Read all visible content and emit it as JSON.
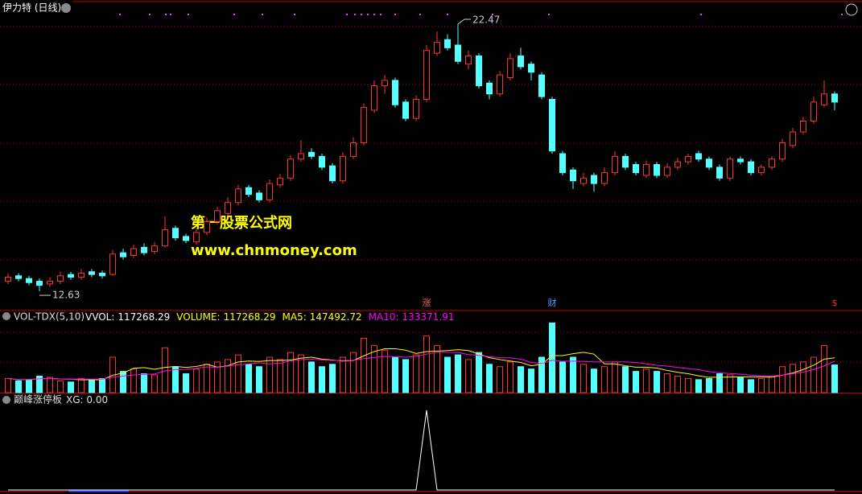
{
  "chart_data": [
    {
      "type": "candlestick",
      "title": "伊力特 (日线)",
      "open": [
        13.0,
        13.2,
        13.1,
        13.0,
        12.9,
        13.0,
        13.25,
        13.15,
        13.35,
        13.3,
        13.25,
        14.05,
        13.95,
        14.25,
        14.1,
        14.3,
        14.95,
        14.65,
        14.45,
        14.8,
        15.2,
        15.5,
        15.9,
        16.45,
        16.25,
        16.0,
        16.55,
        16.8,
        17.5,
        17.75,
        17.6,
        17.25,
        16.7,
        17.6,
        18.1,
        19.3,
        20.2,
        20.4,
        19.6,
        19.0,
        19.7,
        21.4,
        21.9,
        21.7,
        21.0,
        21.3,
        20.3,
        19.9,
        20.5,
        21.3,
        21.0,
        20.6,
        19.7,
        17.7,
        17.1,
        16.6,
        16.9,
        16.6,
        17.0,
        17.6,
        17.3,
        16.9,
        17.3,
        16.9,
        17.2,
        17.4,
        17.7,
        17.5,
        17.2,
        16.8,
        17.5,
        17.4,
        17.0,
        17.2,
        17.5,
        18.0,
        18.5,
        18.9,
        19.5,
        19.9
      ],
      "high": [
        13.3,
        13.3,
        13.2,
        13.1,
        13.15,
        13.35,
        13.35,
        13.45,
        13.45,
        13.4,
        14.15,
        14.2,
        14.35,
        14.4,
        14.45,
        15.4,
        15.05,
        14.75,
        14.95,
        15.35,
        15.75,
        16.1,
        16.55,
        16.55,
        16.35,
        16.75,
        16.95,
        17.65,
        18.2,
        17.9,
        17.7,
        17.35,
        17.75,
        18.3,
        19.55,
        20.4,
        20.6,
        20.5,
        19.7,
        19.85,
        21.7,
        22.2,
        22.1,
        22.47,
        21.5,
        21.4,
        20.4,
        20.75,
        21.4,
        21.6,
        21.1,
        20.7,
        19.8,
        17.8,
        17.2,
        17.0,
        17.0,
        17.2,
        17.8,
        17.7,
        17.4,
        17.45,
        17.4,
        17.35,
        17.55,
        17.7,
        17.8,
        17.6,
        17.3,
        17.6,
        17.6,
        17.5,
        17.3,
        17.6,
        18.25,
        18.65,
        19.05,
        19.8,
        20.4,
        20.0
      ],
      "low": [
        12.9,
        13.0,
        12.85,
        12.63,
        12.8,
        12.9,
        13.05,
        13.05,
        13.15,
        13.1,
        13.2,
        13.8,
        13.85,
        13.95,
        14.0,
        14.25,
        14.5,
        14.4,
        14.35,
        14.7,
        15.1,
        15.4,
        15.8,
        16.1,
        15.9,
        15.9,
        16.45,
        16.7,
        17.4,
        17.5,
        17.1,
        16.6,
        16.6,
        17.5,
        18.0,
        19.2,
        19.9,
        19.4,
        18.9,
        18.9,
        19.6,
        21.3,
        21.5,
        21.0,
        20.8,
        20.1,
        19.7,
        19.8,
        20.4,
        20.8,
        20.4,
        19.7,
        17.7,
        16.9,
        16.4,
        16.5,
        16.3,
        16.5,
        16.9,
        17.1,
        16.9,
        16.8,
        16.8,
        16.8,
        17.1,
        17.3,
        17.4,
        17.1,
        16.7,
        16.7,
        17.3,
        16.9,
        16.9,
        17.1,
        17.4,
        17.9,
        18.4,
        18.8,
        19.4,
        19.3
      ],
      "close": [
        13.15,
        13.1,
        12.95,
        12.85,
        13.0,
        13.2,
        13.15,
        13.3,
        13.25,
        13.2,
        14.0,
        13.9,
        14.2,
        14.05,
        14.3,
        14.9,
        14.6,
        14.5,
        14.8,
        15.2,
        15.6,
        15.9,
        16.4,
        16.2,
        16.0,
        16.6,
        16.8,
        17.5,
        17.7,
        17.6,
        17.2,
        16.7,
        17.6,
        18.1,
        19.4,
        20.2,
        20.4,
        19.5,
        19.0,
        19.7,
        21.5,
        21.8,
        21.6,
        21.1,
        21.3,
        20.2,
        19.9,
        20.6,
        21.2,
        20.9,
        20.7,
        19.8,
        17.8,
        17.0,
        16.7,
        16.8,
        16.6,
        17.0,
        17.6,
        17.2,
        17.0,
        17.3,
        16.9,
        17.2,
        17.4,
        17.6,
        17.5,
        17.2,
        16.8,
        17.5,
        17.4,
        17.0,
        17.2,
        17.5,
        18.1,
        18.5,
        18.9,
        19.6,
        19.9,
        19.6
      ],
      "markers": [
        null,
        null,
        null,
        null,
        null,
        null,
        null,
        null,
        null,
        null,
        null,
        null,
        null,
        null,
        null,
        null,
        null,
        null,
        null,
        null,
        null,
        null,
        null,
        null,
        null,
        null,
        null,
        null,
        null,
        null,
        null,
        null,
        null,
        null,
        null,
        null,
        null,
        null,
        null,
        null,
        "涨",
        null,
        null,
        null,
        null,
        null,
        null,
        null,
        null,
        null,
        null,
        null,
        "财",
        null,
        null,
        null,
        null,
        null,
        null,
        null,
        null,
        null,
        null,
        null,
        null,
        null,
        null,
        null,
        null,
        null,
        null,
        null,
        null,
        null,
        null,
        null,
        null,
        null,
        null,
        "$"
      ],
      "up_color": "#ff3232",
      "down_color": "#54ffff",
      "ylim": [
        11.95,
        23.36
      ],
      "watermark": [
        "第一股票公式网",
        "www.chnmoney.com"
      ]
    },
    {
      "type": "bar",
      "title": "VOL-TDX(5,10)",
      "readouts": [
        {
          "label": "VVOL:",
          "value": 117268.29,
          "color": "#ffffff"
        },
        {
          "label": "VOLUME:",
          "value": 117268.29,
          "color": "#ffff00"
        },
        {
          "label": "MA5:",
          "value": 147492.72,
          "color": "#ffff00"
        },
        {
          "label": "MA10:",
          "value": 133371.91,
          "color": "#ff00ff"
        }
      ],
      "ylim": [
        0,
        300000
      ],
      "series": [
        {
          "name": "VOLUME",
          "values": [
            60000,
            50000,
            55000,
            70000,
            65000,
            50000,
            45000,
            60000,
            55000,
            60000,
            150000,
            90000,
            100000,
            80000,
            75000,
            190000,
            110000,
            80000,
            100000,
            120000,
            130000,
            140000,
            160000,
            120000,
            110000,
            150000,
            140000,
            170000,
            160000,
            130000,
            110000,
            120000,
            150000,
            170000,
            230000,
            200000,
            180000,
            150000,
            140000,
            160000,
            240000,
            200000,
            150000,
            160000,
            140000,
            170000,
            120000,
            110000,
            130000,
            110000,
            100000,
            150000,
            295000,
            130000,
            150000,
            120000,
            100000,
            110000,
            130000,
            110000,
            90000,
            100000,
            90000,
            80000,
            70000,
            60000,
            55000,
            60000,
            80000,
            75000,
            65000,
            55000,
            60000,
            70000,
            110000,
            120000,
            130000,
            150000,
            200000,
            117268.29
          ]
        },
        {
          "name": "MA5",
          "color": "#ffff00",
          "values": [
            60000,
            55000,
            55000,
            59000,
            60000,
            58000,
            57000,
            54000,
            55000,
            54000,
            74000,
            83000,
            103000,
            106000,
            99000,
            107000,
            111000,
            107000,
            111000,
            120000,
            108000,
            114000,
            130000,
            134000,
            132000,
            136000,
            136000,
            138000,
            146000,
            150000,
            142000,
            138000,
            134000,
            136000,
            156000,
            174000,
            186000,
            186000,
            180000,
            166000,
            174000,
            176000,
            178000,
            182000,
            178000,
            164000,
            148000,
            140000,
            134000,
            128000,
            114000,
            120000,
            157000,
            157000,
            165000,
            171000,
            163000,
            122000,
            122000,
            114000,
            108000,
            108000,
            104000,
            94000,
            86000,
            80000,
            71000,
            65000,
            65000,
            66000,
            67000,
            67000,
            67000,
            65000,
            74000,
            83000,
            98000,
            116000,
            142000,
            147492.72
          ]
        },
        {
          "name": "MA10",
          "color": "#ff00ff",
          "values": [
            60000,
            55000,
            55000,
            59000,
            60000,
            58000,
            57000,
            57000,
            57000,
            57000,
            66000,
            70000,
            75000,
            77000,
            79000,
            92000,
            97000,
            99000,
            103000,
            109000,
            107000,
            112000,
            118000,
            122000,
            126000,
            122000,
            125000,
            134000,
            140000,
            141000,
            139000,
            137000,
            136000,
            137000,
            144000,
            149000,
            153000,
            152000,
            150000,
            154000,
            163000,
            171000,
            171000,
            170000,
            161000,
            158000,
            152000,
            148000,
            147000,
            142000,
            128000,
            123000,
            137000,
            133000,
            134000,
            132000,
            130000,
            130000,
            130000,
            130000,
            128000,
            122000,
            116000,
            112000,
            107000,
            102000,
            97000,
            89000,
            84000,
            81000,
            78000,
            74000,
            71000,
            70000,
            74000,
            80000,
            87000,
            98000,
            113000,
            133371.91
          ]
        }
      ]
    },
    {
      "type": "line",
      "title": "巅峰涨停板",
      "readout": {
        "label": "XG:",
        "value": 0,
        "value_label": "0.00"
      },
      "color": "#ffffff",
      "ylim": [
        0,
        1
      ],
      "values": [
        0,
        0,
        0,
        0,
        0,
        0,
        0,
        0,
        0,
        0,
        0,
        0,
        0,
        0,
        0,
        0,
        0,
        0,
        0,
        0,
        0,
        0,
        0,
        0,
        0,
        0,
        0,
        0,
        0,
        0,
        0,
        0,
        0,
        0,
        0,
        0,
        0,
        0,
        0,
        0,
        1,
        0,
        0,
        0,
        0,
        0,
        0,
        0,
        0,
        0,
        0,
        0,
        0,
        0,
        0,
        0,
        0,
        0,
        0,
        0,
        0,
        0,
        0,
        0,
        0,
        0,
        0,
        0,
        0,
        0,
        0,
        0,
        0,
        0,
        0,
        0,
        0,
        0,
        0,
        0
      ]
    }
  ]
}
